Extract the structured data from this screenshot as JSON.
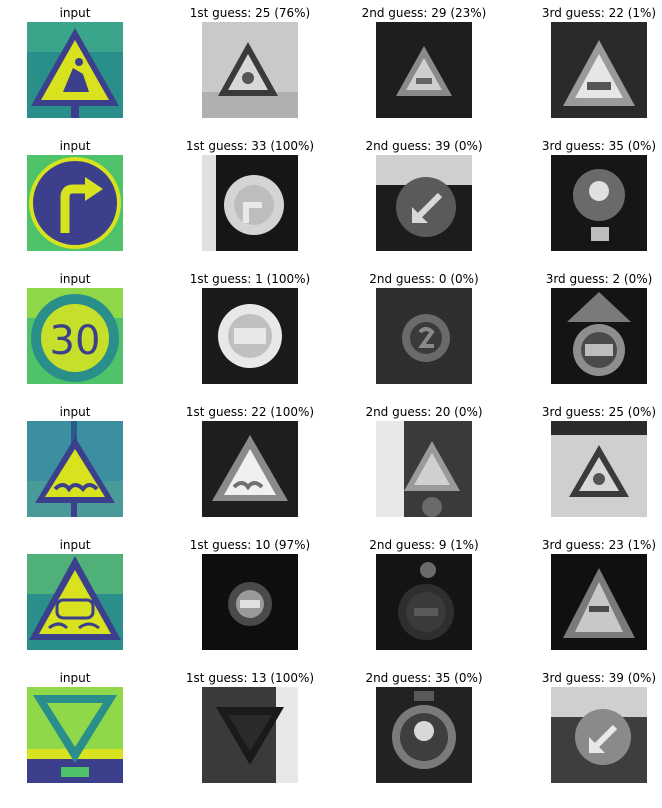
{
  "rows": [
    {
      "input": "input",
      "guess1": "1st guess: 25 (76%)",
      "guess2": "2nd guess: 29 (23%)",
      "guess3": "3rd guess: 22 (1%)"
    },
    {
      "input": "input",
      "guess1": "1st guess: 33 (100%)",
      "guess2": "2nd guess: 39 (0%)",
      "guess3": "3rd guess: 35 (0%)"
    },
    {
      "input": "input",
      "guess1": "1st guess: 1 (100%)",
      "guess2": "2nd guess: 0 (0%)",
      "guess3": "3rd guess: 2 (0%)"
    },
    {
      "input": "input",
      "guess1": "1st guess: 22 (100%)",
      "guess2": "2nd guess: 20 (0%)",
      "guess3": "3rd guess: 25 (0%)"
    },
    {
      "input": "input",
      "guess1": "1st guess: 10 (97%)",
      "guess2": "2nd guess: 9 (1%)",
      "guess3": "3rd guess: 23 (1%)"
    },
    {
      "input": "input",
      "guess1": "1st guess: 13 (100%)",
      "guess2": "2nd guess: 35 (0%)",
      "guess3": "3rd guess: 39 (0%)"
    }
  ],
  "speed_sign_text": "30",
  "colors": {
    "viridis_dark": "#3b3f8c",
    "viridis_teal": "#2a8f8a",
    "viridis_green": "#4fc36a",
    "viridis_yellow": "#d8e21e",
    "gray_dark": "#202020",
    "gray_light": "#c8c8c8"
  }
}
